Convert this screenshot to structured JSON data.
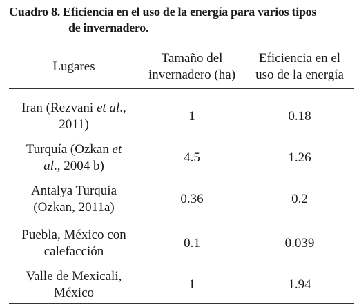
{
  "caption": {
    "line1": "Cuadro 8. Eficiencia en el uso de la energía para varios tipos",
    "line2": "de invernadero."
  },
  "header": {
    "col1": "Lugares",
    "col2_line1": "Tamaño del",
    "col2_line2": "invernadero (ha)",
    "col3_line1": "Eficiencia en el",
    "col3_line2": "uso de la energía"
  },
  "rows": [
    {
      "place_a": "Iran (Rezvani ",
      "place_em": "et al",
      "place_b": "., ",
      "place_line2": "2011)",
      "size": "1",
      "efficiency": "0.18"
    },
    {
      "place_a": "Turquía (Ozkan ",
      "place_em": "et",
      "place_line2_em": "al",
      "place_line2": "., 2004 b)",
      "size": "4.5",
      "efficiency": "1.26"
    },
    {
      "place_line1": "Antalya Turquía",
      "place_line2": "(Ozkan, 2011a)",
      "size": "0.36",
      "efficiency": "0.2"
    },
    {
      "place_line1": "Puebla, México con",
      "place_line2": "calefacción",
      "size": "0.1",
      "efficiency": "0.039"
    },
    {
      "place_line1": "Valle de Mexicali,",
      "place_line2": "México",
      "size": "1",
      "efficiency": "1.94"
    }
  ]
}
